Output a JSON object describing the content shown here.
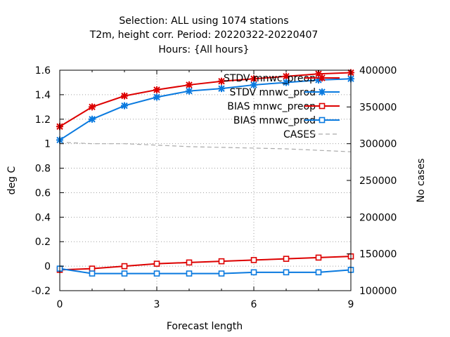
{
  "chart_data": {
    "type": "line",
    "title_lines": [
      "Selection: ALL using  1074 stations",
      "T2m, height corr.   Period: 20220322-20220407",
      "Hours: {All hours}"
    ],
    "xlabel": "Forecast length",
    "ylabel": "deg C",
    "y2label": "No cases",
    "xlim": [
      0,
      9
    ],
    "ylim": [
      -0.2,
      1.6
    ],
    "y2lim": [
      100000,
      400000
    ],
    "xticks": [
      0,
      3,
      6,
      9
    ],
    "yticks": [
      -0.2,
      0,
      0.2,
      0.4,
      0.6,
      0.8,
      1,
      1.2,
      1.4,
      1.6
    ],
    "y2ticks": [
      100000,
      150000,
      200000,
      250000,
      300000,
      350000,
      400000
    ],
    "grid": true,
    "legend_position": "top-right",
    "x": [
      0,
      1,
      2,
      3,
      4,
      5,
      6,
      7,
      8,
      9
    ],
    "series": [
      {
        "name": "STDV mnwc_preop",
        "color": "#dd0000",
        "marker": "x",
        "axis": "y",
        "values": [
          1.14,
          1.3,
          1.39,
          1.44,
          1.48,
          1.51,
          1.53,
          1.55,
          1.57,
          1.58
        ]
      },
      {
        "name": "STDV mnwc_prod",
        "color": "#0a7adf",
        "marker": "x",
        "axis": "y",
        "values": [
          1.03,
          1.2,
          1.31,
          1.38,
          1.43,
          1.45,
          1.48,
          1.5,
          1.52,
          1.53
        ]
      },
      {
        "name": "BIAS mnwc_preop",
        "color": "#dd0000",
        "marker": "square",
        "axis": "y",
        "values": [
          -0.03,
          -0.02,
          0.0,
          0.02,
          0.03,
          0.04,
          0.05,
          0.06,
          0.07,
          0.08
        ]
      },
      {
        "name": "BIAS mnwc_prod",
        "color": "#0a7adf",
        "marker": "square",
        "axis": "y",
        "values": [
          -0.02,
          -0.06,
          -0.06,
          -0.06,
          -0.06,
          -0.06,
          -0.05,
          -0.05,
          -0.05,
          -0.03
        ]
      },
      {
        "name": "CASES",
        "color": "#aaaaaa",
        "marker": "none",
        "dash": true,
        "axis": "y2",
        "values": [
          302000,
          300000,
          300000,
          298000,
          296000,
          295000,
          294000,
          293000,
          291000,
          289000
        ]
      }
    ]
  }
}
